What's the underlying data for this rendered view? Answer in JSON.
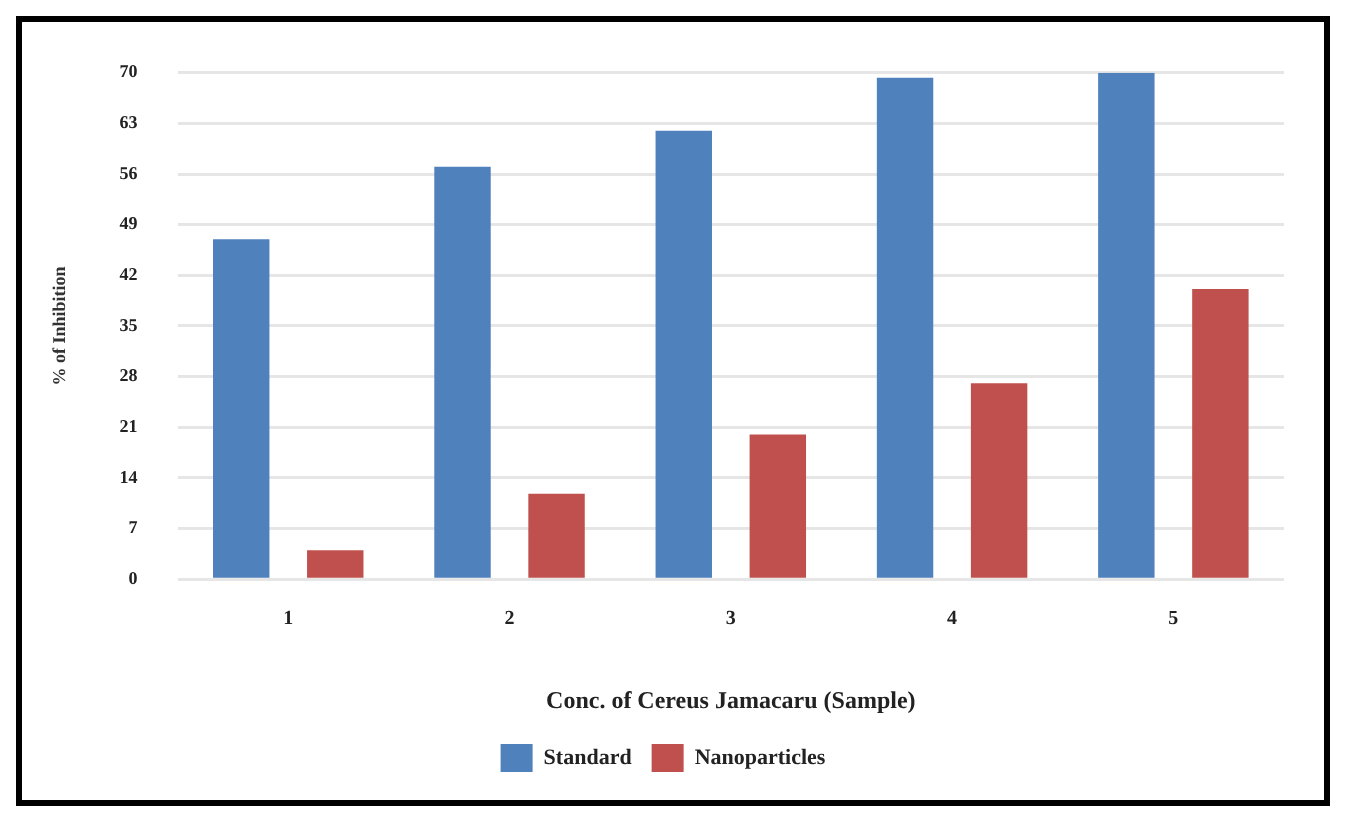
{
  "chart_data": {
    "type": "bar",
    "xlabel": "Conc. of Cereus Jamacaru (Sample)",
    "ylabel": "% of Inhibition",
    "categories": [
      "1",
      "2",
      "3",
      "4",
      "5"
    ],
    "series": [
      {
        "name": "Standard",
        "color": "#4f81bd",
        "values": [
          47,
          57,
          62,
          69.3,
          70
        ]
      },
      {
        "name": "Nanoparticles",
        "color": "#c0504d",
        "values": [
          4,
          11.8,
          20,
          27.1,
          40.1
        ]
      }
    ],
    "ylim": [
      0,
      70
    ],
    "yticks": [
      0,
      7,
      14,
      21,
      28,
      35,
      42,
      49,
      56,
      63,
      70
    ],
    "grid": "y",
    "legend": "bottom"
  }
}
